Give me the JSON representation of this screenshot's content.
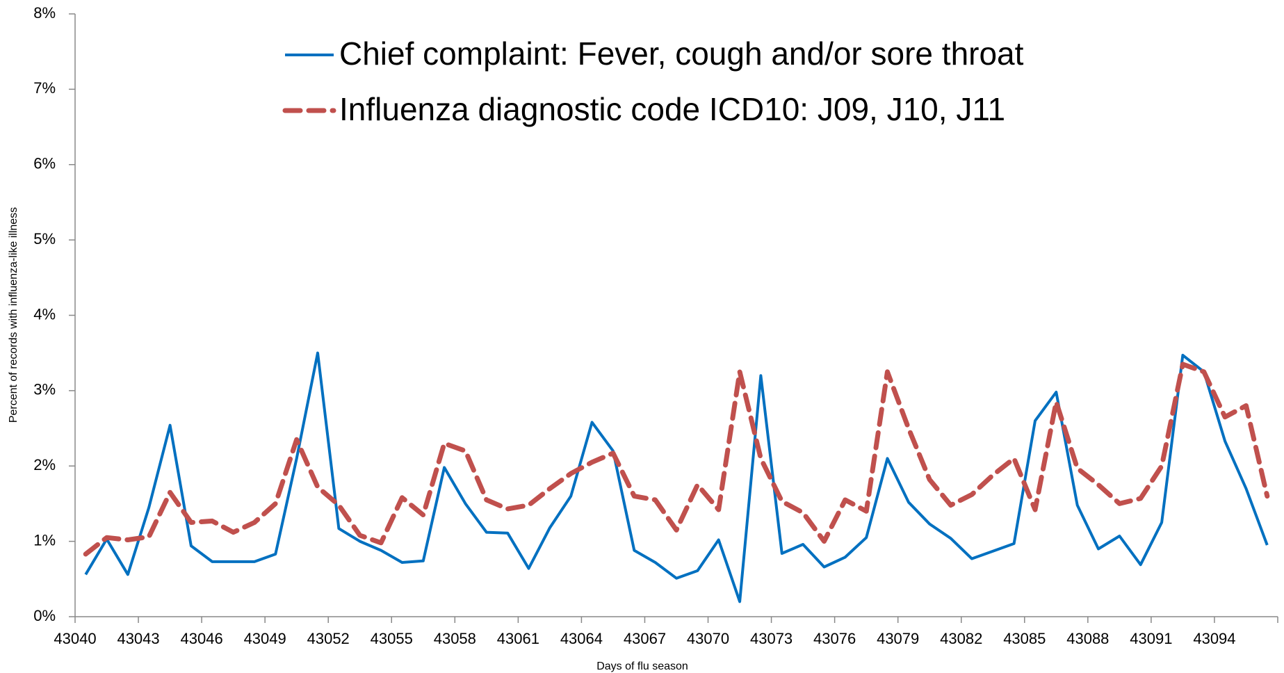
{
  "chart_data": {
    "type": "line",
    "legend": "top",
    "xlabel": "Days of flu season",
    "ylabel": "Percent of records with influenza-like illness",
    "categories": [
      "43040",
      null,
      null,
      "43043",
      null,
      null,
      "43046",
      null,
      null,
      "43049",
      null,
      null,
      "43052",
      null,
      null,
      "43055",
      null,
      null,
      "43058",
      null,
      null,
      "43061",
      null,
      null,
      "43064",
      null,
      null,
      "43067",
      null,
      null,
      "43070",
      null,
      null,
      "43073",
      null,
      null,
      "43076",
      null,
      null,
      "43079",
      null,
      null,
      "43082",
      null,
      null,
      "43085",
      null,
      null,
      "43088",
      null,
      null,
      "43091",
      null,
      null,
      "43094",
      null,
      null
    ],
    "ylim": [
      0,
      8
    ],
    "yticks": [
      {
        "value": 0,
        "label": "0%"
      },
      {
        "value": 1,
        "label": "1%"
      },
      {
        "value": 2,
        "label": "2%"
      },
      {
        "value": 3,
        "label": "3%"
      },
      {
        "value": 4,
        "label": "4%"
      },
      {
        "value": 5,
        "label": "5%"
      },
      {
        "value": 6,
        "label": "6%"
      },
      {
        "value": 7,
        "label": "7%"
      },
      {
        "value": 8,
        "label": "8%"
      }
    ],
    "series": [
      {
        "name": "Chief complaint:  Fever, cough and/or sore throat",
        "color": "#0070c0",
        "dash": "solid",
        "values": [
          0.56,
          1.03,
          0.56,
          1.45,
          2.54,
          0.94,
          0.73,
          0.73,
          0.73,
          0.83,
          2.1,
          3.5,
          1.17,
          1.0,
          0.88,
          0.72,
          0.74,
          1.98,
          1.5,
          1.12,
          1.11,
          0.64,
          1.18,
          1.6,
          2.58,
          2.2,
          0.88,
          0.72,
          0.51,
          0.61,
          1.02,
          0.2,
          3.2,
          0.84,
          0.96,
          0.66,
          0.79,
          1.05,
          2.1,
          1.52,
          1.23,
          1.04,
          0.77,
          0.87,
          0.97,
          2.6,
          2.98,
          1.48,
          0.9,
          1.07,
          0.69,
          1.25,
          3.47,
          3.25,
          2.33,
          1.7,
          0.95
        ]
      },
      {
        "name": "Influenza diagnostic code ICD10: J09, J10, J11",
        "color": "#c0504d",
        "dash": "dashed",
        "values": [
          0.83,
          1.05,
          1.02,
          1.06,
          1.65,
          1.25,
          1.27,
          1.12,
          1.25,
          1.5,
          2.35,
          1.72,
          1.48,
          1.08,
          0.98,
          1.58,
          1.35,
          2.3,
          2.2,
          1.55,
          1.43,
          1.48,
          1.7,
          1.9,
          2.05,
          2.17,
          1.6,
          1.55,
          1.15,
          1.75,
          1.42,
          3.25,
          2.1,
          1.53,
          1.38,
          1.0,
          1.55,
          1.4,
          3.25,
          2.5,
          1.82,
          1.48,
          1.62,
          1.88,
          2.1,
          1.42,
          2.85,
          1.97,
          1.75,
          1.5,
          1.57,
          2.0,
          3.35,
          3.25,
          2.65,
          2.8,
          1.6
        ]
      }
    ]
  }
}
